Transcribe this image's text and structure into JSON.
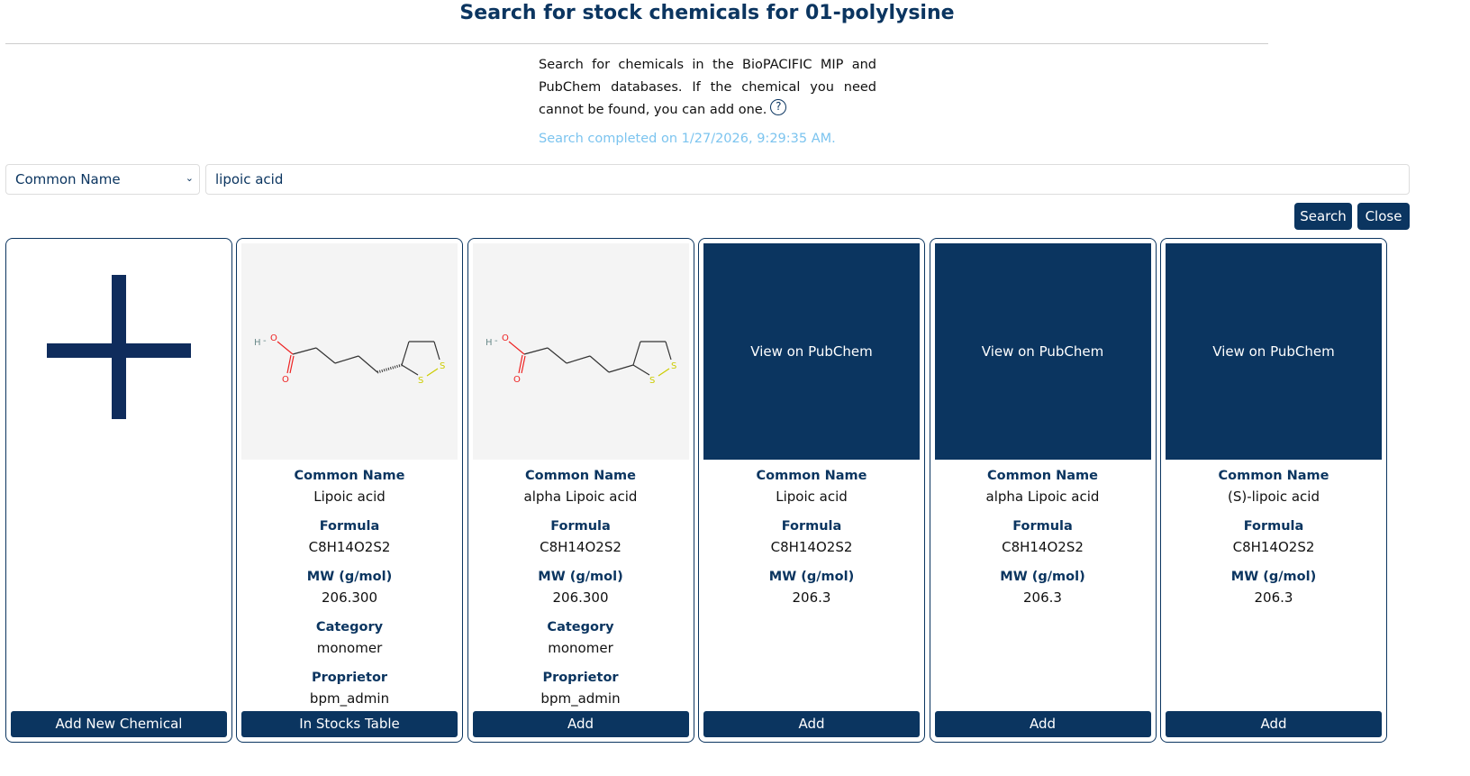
{
  "title": "Search for stock chemicals for 01-polylysine",
  "intro": "Search for chemicals in the BioPACIFIC MIP and PubChem databases. If the chemical you need cannot be found, you can add one.",
  "help_icon": "?",
  "status": "Search completed on 1/27/2026, 9:29:35 AM.",
  "search": {
    "field": "Common Name",
    "query": "lipoic acid",
    "search_label": "Search",
    "close_label": "Close"
  },
  "labels": {
    "common_name": "Common Name",
    "formula": "Formula",
    "mw": "MW (g/mol)",
    "category": "Category",
    "proprietor": "Proprietor"
  },
  "add_new_label": "Add New Chemical",
  "pubchem_label": "View on PubChem",
  "colors": {
    "primary": "#0b3560",
    "status": "#7cc4ef"
  },
  "results": [
    {
      "common_name": "Lipoic acid",
      "formula": "C8H14O2S2",
      "mw": "206.300",
      "category": "monomer",
      "proprietor": "bpm_admin",
      "action": "In Stocks Table",
      "image": "structure-stereo"
    },
    {
      "common_name": "alpha Lipoic acid",
      "formula": "C8H14O2S2",
      "mw": "206.300",
      "category": "monomer",
      "proprietor": "bpm_admin",
      "action": "Add",
      "image": "structure"
    },
    {
      "common_name": "Lipoic acid",
      "formula": "C8H14O2S2",
      "mw": "206.3",
      "action": "Add",
      "image": "pubchem"
    },
    {
      "common_name": "alpha Lipoic acid",
      "formula": "C8H14O2S2",
      "mw": "206.3",
      "action": "Add",
      "image": "pubchem"
    },
    {
      "common_name": "(S)-lipoic acid",
      "formula": "C8H14O2S2",
      "mw": "206.3",
      "action": "Add",
      "image": "pubchem"
    }
  ]
}
